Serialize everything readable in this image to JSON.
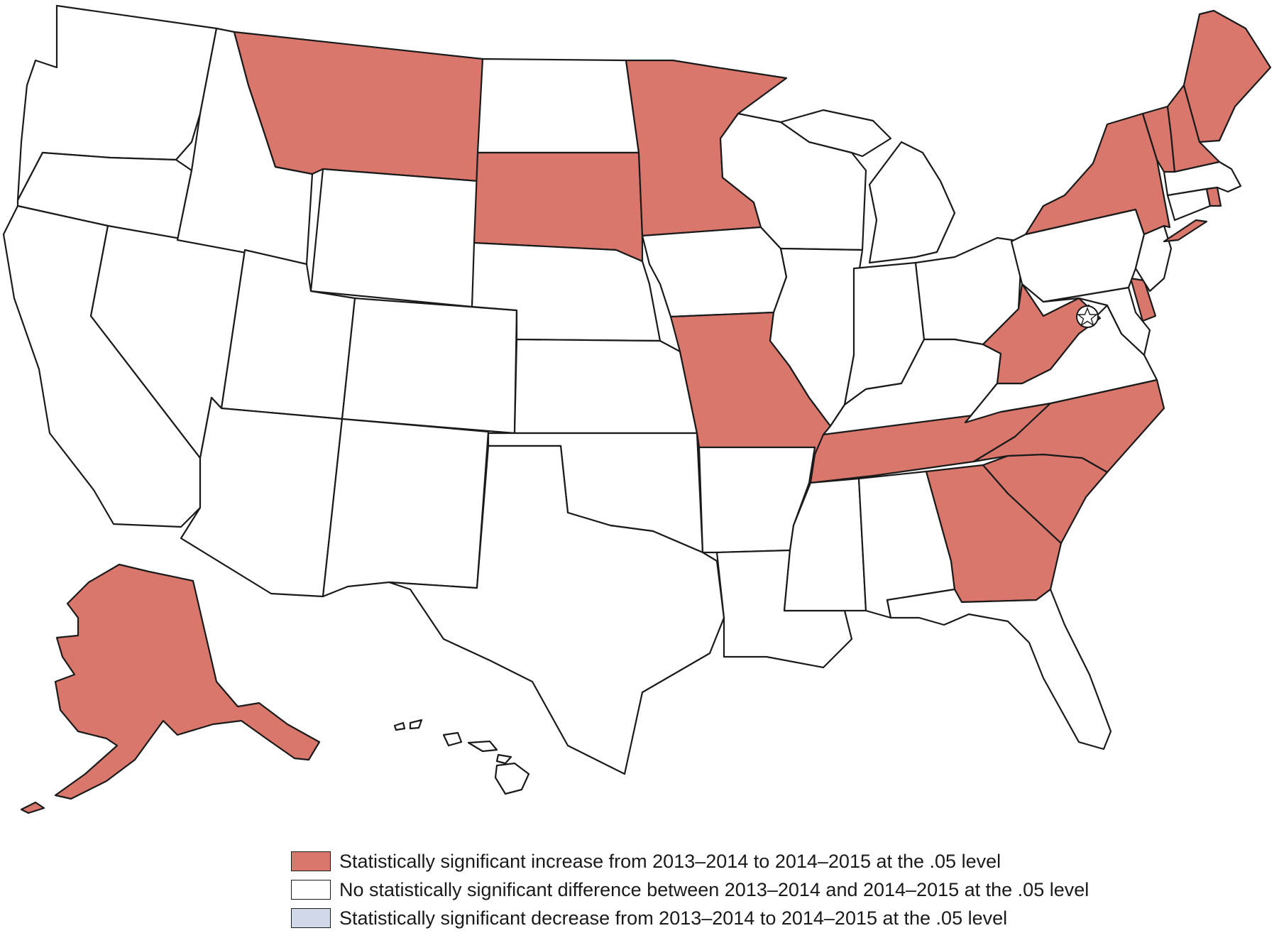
{
  "colors": {
    "increase": "#d9776c",
    "no_difference": "#ffffff",
    "decrease": "#cfd9ea",
    "stroke": "#1a1a1a"
  },
  "legend": [
    {
      "key": "increase",
      "label": "Statistically significant increase from 2013–2014 to 2014–2015 at the .05 level"
    },
    {
      "key": "no_difference",
      "label": "No statistically significant difference between 2013–2014 and 2014–2015 at the .05 level"
    },
    {
      "key": "decrease",
      "label": "Statistically significant decrease from 2013–2014 to 2014–2015 at the .05 level"
    }
  ],
  "map": {
    "states": [
      {
        "id": "WA",
        "category": "no_difference"
      },
      {
        "id": "OR",
        "category": "no_difference"
      },
      {
        "id": "CA",
        "category": "no_difference"
      },
      {
        "id": "NV",
        "category": "no_difference"
      },
      {
        "id": "ID",
        "category": "no_difference"
      },
      {
        "id": "MT",
        "category": "increase"
      },
      {
        "id": "WY",
        "category": "no_difference"
      },
      {
        "id": "UT",
        "category": "no_difference"
      },
      {
        "id": "AZ",
        "category": "no_difference"
      },
      {
        "id": "CO",
        "category": "no_difference"
      },
      {
        "id": "NM",
        "category": "no_difference"
      },
      {
        "id": "ND",
        "category": "no_difference"
      },
      {
        "id": "SD",
        "category": "increase"
      },
      {
        "id": "NE",
        "category": "no_difference"
      },
      {
        "id": "KS",
        "category": "no_difference"
      },
      {
        "id": "OK",
        "category": "no_difference"
      },
      {
        "id": "TX",
        "category": "no_difference"
      },
      {
        "id": "MN",
        "category": "increase"
      },
      {
        "id": "IA",
        "category": "no_difference"
      },
      {
        "id": "MO",
        "category": "increase"
      },
      {
        "id": "AR",
        "category": "no_difference"
      },
      {
        "id": "LA",
        "category": "no_difference"
      },
      {
        "id": "WI",
        "category": "no_difference"
      },
      {
        "id": "IL",
        "category": "no_difference"
      },
      {
        "id": "MI",
        "category": "no_difference"
      },
      {
        "id": "IN",
        "category": "no_difference"
      },
      {
        "id": "OH",
        "category": "no_difference"
      },
      {
        "id": "KY",
        "category": "no_difference"
      },
      {
        "id": "TN",
        "category": "increase"
      },
      {
        "id": "MS",
        "category": "no_difference"
      },
      {
        "id": "AL",
        "category": "no_difference"
      },
      {
        "id": "GA",
        "category": "increase"
      },
      {
        "id": "FL",
        "category": "no_difference"
      },
      {
        "id": "SC",
        "category": "increase"
      },
      {
        "id": "NC",
        "category": "increase"
      },
      {
        "id": "VA",
        "category": "no_difference"
      },
      {
        "id": "WV",
        "category": "increase"
      },
      {
        "id": "MD",
        "category": "no_difference"
      },
      {
        "id": "DE",
        "category": "increase"
      },
      {
        "id": "PA",
        "category": "no_difference"
      },
      {
        "id": "NJ",
        "category": "no_difference"
      },
      {
        "id": "NY",
        "category": "increase"
      },
      {
        "id": "CT",
        "category": "no_difference"
      },
      {
        "id": "RI",
        "category": "increase"
      },
      {
        "id": "MA",
        "category": "no_difference"
      },
      {
        "id": "VT",
        "category": "increase"
      },
      {
        "id": "NH",
        "category": "increase"
      },
      {
        "id": "ME",
        "category": "increase"
      },
      {
        "id": "AK",
        "category": "increase"
      },
      {
        "id": "HI",
        "category": "no_difference"
      },
      {
        "id": "DC",
        "category": "no_difference"
      }
    ]
  }
}
